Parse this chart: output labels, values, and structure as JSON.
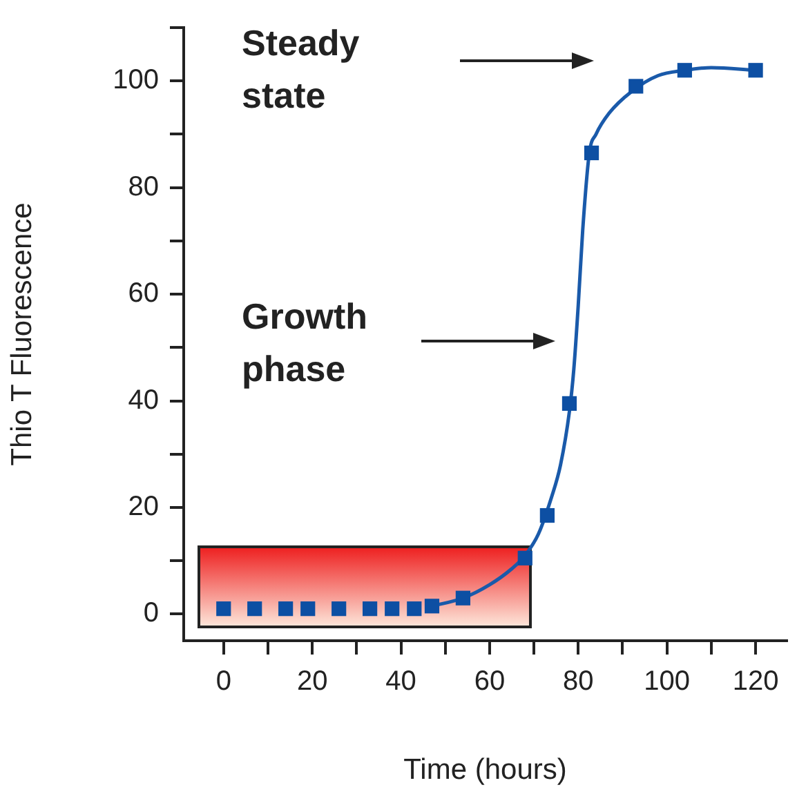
{
  "chart_data": {
    "type": "scatter",
    "xlabel": "Time (hours)",
    "ylabel": "Thio T Fluorescence",
    "annotations": [
      "Steady state",
      "Growth phase"
    ],
    "xlim": [
      -9,
      127
    ],
    "ylim": [
      -5,
      110
    ],
    "xticks": [
      0,
      {
        "value": 10,
        "label": null
      },
      20,
      {
        "value": 30,
        "label": null
      },
      40,
      {
        "value": 50,
        "label": null
      },
      60,
      {
        "value": 70,
        "label": null
      },
      80,
      {
        "value": 90,
        "label": null
      },
      100,
      {
        "value": 110,
        "label": null
      },
      120
    ],
    "yticks": [
      0,
      {
        "value": 10,
        "label": null
      },
      20,
      {
        "value": 30,
        "label": null
      },
      40,
      {
        "value": 50,
        "label": null
      },
      60,
      {
        "value": 70,
        "label": null
      },
      80,
      {
        "value": 90,
        "label": null
      },
      100,
      {
        "value": 110,
        "label": null
      }
    ],
    "grid": false,
    "legend": false,
    "series": [
      {
        "type": "scatter",
        "color": "#0d4fa3",
        "marker": "square",
        "x": [
          0,
          7,
          14,
          19,
          26,
          33,
          38,
          43,
          47,
          54,
          68,
          73,
          78,
          83,
          93,
          104,
          120
        ],
        "values": [
          1,
          1,
          1,
          1,
          1,
          1,
          1,
          1,
          1.5,
          3,
          10.5,
          18.5,
          39.5,
          86.5,
          99,
          102,
          102
        ]
      },
      {
        "type": "line",
        "color": "#1a5aaa",
        "marker": "none",
        "line_style": "solid",
        "x": [
          47,
          54,
          60,
          65,
          68,
          71,
          74,
          76,
          78,
          79,
          80,
          81,
          82.5,
          84,
          87,
          92,
          98,
          104,
          110,
          120
        ],
        "values": [
          1.5,
          3,
          5.5,
          8.5,
          11,
          15,
          22,
          28,
          38,
          46,
          58,
          72,
          86.5,
          90,
          94,
          98,
          101,
          102,
          102.5,
          102
        ]
      }
    ]
  }
}
